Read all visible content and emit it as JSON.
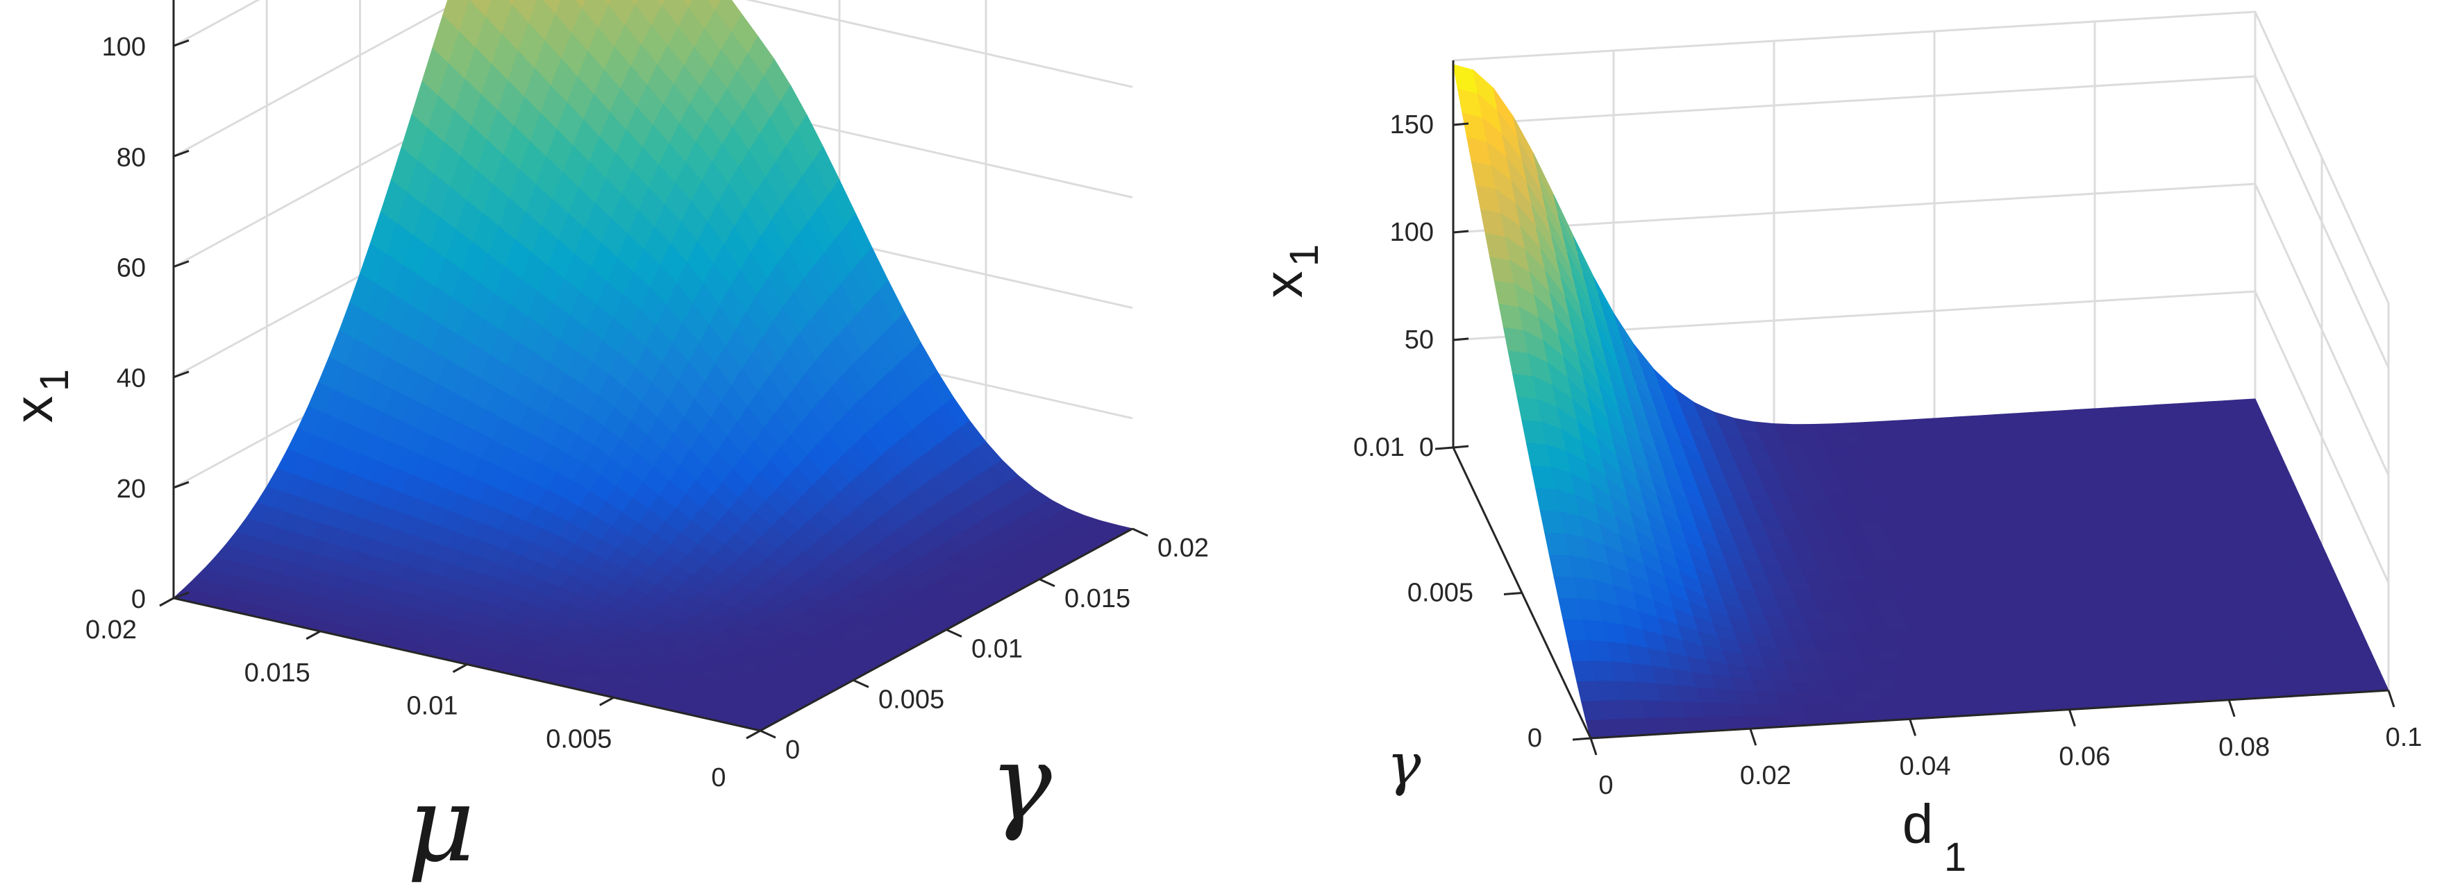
{
  "chart_data": [
    {
      "type": "surface",
      "panel": "left",
      "z_label": "x",
      "z_label_sub": "1",
      "x_label": "μ",
      "y_label": "γ",
      "x_ticks": [
        "0.02",
        "0.015",
        "0.01",
        "0.005",
        "0"
      ],
      "y_ticks": [
        "0",
        "0.005",
        "0.01",
        "0.015",
        "0.02"
      ],
      "z_ticks": [
        "0",
        "20",
        "40",
        "60",
        "80",
        "100"
      ],
      "x_range": [
        0,
        0.02
      ],
      "y_range": [
        0,
        0.02
      ],
      "z_range": [
        0,
        120
      ],
      "peak": {
        "x": 0.02,
        "y": 0.02,
        "z": 118
      },
      "colormap": [
        "#352a87",
        "#0f5cdd",
        "#1481d6",
        "#06a4ca",
        "#2eb7a4",
        "#87bf77",
        "#d1bb59",
        "#fec832",
        "#f9fb0e"
      ]
    },
    {
      "type": "surface",
      "panel": "right",
      "z_label": "x",
      "z_label_sub": "1",
      "x_label": "d",
      "x_label_sub": "1",
      "y_label": "γ",
      "x_ticks": [
        "0",
        "0.02",
        "0.04",
        "0.06",
        "0.08",
        "0.1"
      ],
      "y_ticks": [
        "0",
        "0.005",
        "0.01"
      ],
      "z_ticks": [
        "0",
        "50",
        "100",
        "150"
      ],
      "x_range": [
        0,
        0.1
      ],
      "y_range": [
        0,
        0.01
      ],
      "z_range": [
        0,
        180
      ],
      "peak": {
        "x": 0,
        "y": 0.01,
        "z": 178
      },
      "colormap": [
        "#352a87",
        "#0f5cdd",
        "#1481d6",
        "#06a4ca",
        "#2eb7a4",
        "#87bf77",
        "#d1bb59",
        "#fec832",
        "#f9fb0e"
      ]
    }
  ]
}
